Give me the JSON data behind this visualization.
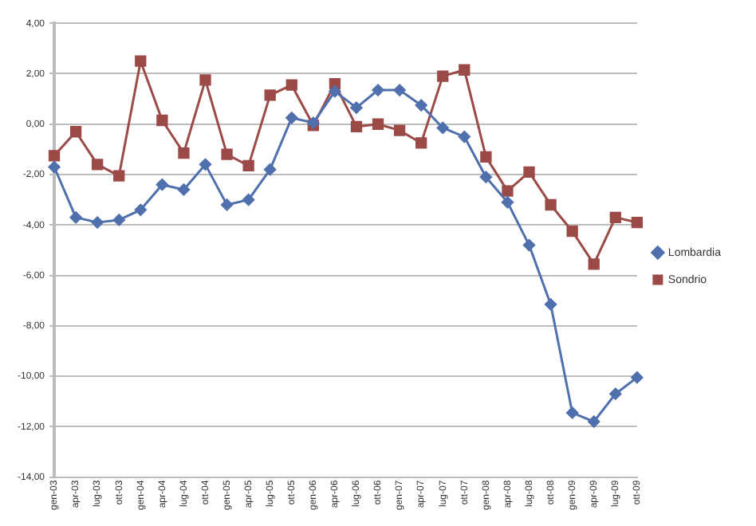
{
  "chart_data": {
    "type": "line",
    "categories": [
      "gen-03",
      "apr-03",
      "lug-03",
      "ott-03",
      "gen-04",
      "apr-04",
      "lug-04",
      "ott-04",
      "gen-05",
      "apr-05",
      "lug-05",
      "ott-05",
      "gen-06",
      "apr-06",
      "lug-06",
      "ott-06",
      "gen-07",
      "apr-07",
      "lug-07",
      "ott-07",
      "gen-08",
      "apr-08",
      "lug-08",
      "ott-08",
      "gen-09",
      "apr-09",
      "lug-09",
      "ott-09"
    ],
    "series": [
      {
        "name": "Lombardia",
        "color": "#4f6fad",
        "marker": "diamond",
        "values": [
          -1.7,
          -3.7,
          -3.9,
          -3.8,
          -3.4,
          -2.4,
          -2.6,
          -1.6,
          -3.2,
          -3.0,
          -1.8,
          0.25,
          0.05,
          1.3,
          0.65,
          1.35,
          1.35,
          0.75,
          -0.15,
          -0.5,
          -2.1,
          -3.1,
          -4.8,
          -7.15,
          -11.45,
          -11.8,
          -10.7,
          -10.05
        ]
      },
      {
        "name": "Sondrio",
        "color": "#9b4a48",
        "marker": "square",
        "values": [
          -1.25,
          -0.3,
          -1.6,
          -2.05,
          2.5,
          0.15,
          -1.15,
          1.75,
          -1.2,
          -1.65,
          1.15,
          1.55,
          -0.05,
          1.6,
          -0.1,
          0.0,
          -0.25,
          -0.75,
          1.9,
          2.15,
          -1.3,
          -2.65,
          -1.9,
          -3.2,
          -4.25,
          -5.55,
          -3.7,
          -3.9
        ]
      }
    ],
    "ylim": [
      -14,
      4
    ],
    "yticks": [
      {
        "value": -14,
        "label": "-14,00"
      },
      {
        "value": -12,
        "label": "-12,00"
      },
      {
        "value": -10,
        "label": "-10,00"
      },
      {
        "value": -8,
        "label": "-8,00"
      },
      {
        "value": -6,
        "label": "-6,00"
      },
      {
        "value": -4,
        "label": "-4,00"
      },
      {
        "value": -2,
        "label": "-2,00"
      },
      {
        "value": 0,
        "label": "0,00"
      },
      {
        "value": 2,
        "label": "2,00"
      },
      {
        "value": 4,
        "label": "4,00"
      }
    ],
    "grid": "y",
    "legend": "right",
    "line_style": "solid"
  }
}
